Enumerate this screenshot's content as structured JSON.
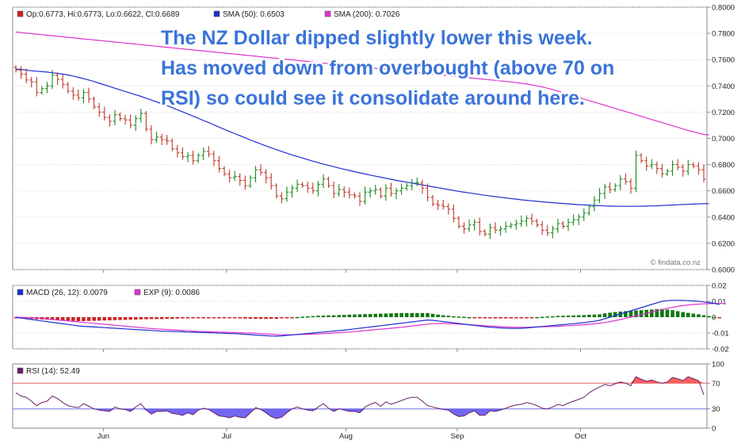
{
  "chart_data": {
    "type": "line",
    "annotation": [
      "The NZ Dollar dipped slightly lower this week.",
      "Has moved down from overbought (above 70 on",
      "RSI) so could see it consolidate around here."
    ],
    "watermark": "© findata.co.nz",
    "x_month_labels": [
      "Jun",
      "Jul",
      "Aug",
      "Sep",
      "Oct"
    ],
    "colors": {
      "up": "#1a8a1a",
      "down": "#c0392b",
      "sma50": "#1f2fd0",
      "sma200": "#dd33cc",
      "macd": "#1f2fd0",
      "exp": "#dd33cc",
      "rsi": "#6a1f6a",
      "rsi_over": "#ff4444",
      "rsi_under": "#5a4cf0",
      "hist_pos": "#117711",
      "hist_neg": "#cc2222"
    },
    "price": {
      "legend": [
        {
          "swatch": "#cc2222",
          "text": "Op:0.6773, Hi:0.6773, Lo:0.6622, Cl:0.6689"
        },
        {
          "swatch": "#1f2fd0",
          "text": "SMA (50): 0.6503"
        },
        {
          "swatch": "#dd33cc",
          "text": "SMA (200): 0.7026"
        }
      ],
      "ylim": [
        0.6,
        0.8
      ],
      "yticks": [
        "0.6000",
        "0.6200",
        "0.6400",
        "0.6600",
        "0.6800",
        "0.7000",
        "0.7200",
        "0.7400",
        "0.7600",
        "0.7800",
        "0.8000"
      ],
      "close": [
        0.752,
        0.749,
        0.7445,
        0.743,
        0.735,
        0.738,
        0.74,
        0.748,
        0.745,
        0.741,
        0.736,
        0.733,
        0.731,
        0.735,
        0.73,
        0.724,
        0.72,
        0.716,
        0.713,
        0.718,
        0.715,
        0.714,
        0.71,
        0.715,
        0.719,
        0.707,
        0.699,
        0.701,
        0.699,
        0.698,
        0.692,
        0.689,
        0.686,
        0.687,
        0.683,
        0.687,
        0.69,
        0.688,
        0.683,
        0.677,
        0.673,
        0.67,
        0.671,
        0.668,
        0.664,
        0.67,
        0.676,
        0.674,
        0.67,
        0.664,
        0.656,
        0.654,
        0.659,
        0.662,
        0.665,
        0.664,
        0.662,
        0.66,
        0.665,
        0.669,
        0.664,
        0.658,
        0.661,
        0.659,
        0.657,
        0.656,
        0.652,
        0.659,
        0.66,
        0.661,
        0.656,
        0.662,
        0.658,
        0.66,
        0.662,
        0.664,
        0.666,
        0.666,
        0.662,
        0.655,
        0.65,
        0.649,
        0.648,
        0.646,
        0.639,
        0.633,
        0.631,
        0.634,
        0.636,
        0.629,
        0.627,
        0.632,
        0.63,
        0.631,
        0.633,
        0.634,
        0.635,
        0.637,
        0.639,
        0.637,
        0.634,
        0.63,
        0.628,
        0.631,
        0.635,
        0.633,
        0.636,
        0.638,
        0.64,
        0.643,
        0.648,
        0.653,
        0.658,
        0.663,
        0.661,
        0.664,
        0.669,
        0.667,
        0.662,
        0.687,
        0.683,
        0.679,
        0.68,
        0.677,
        0.673,
        0.675,
        0.68,
        0.678,
        0.675,
        0.68,
        0.679,
        0.676,
        0.6689
      ],
      "sma50": [
        0.753,
        0.7525,
        0.752,
        0.7515,
        0.7512,
        0.7508,
        0.7505,
        0.75,
        0.7495,
        0.749,
        0.7483,
        0.7475,
        0.7465,
        0.7455,
        0.7445,
        0.7433,
        0.742,
        0.7408,
        0.7395,
        0.7382,
        0.737,
        0.7357,
        0.7345,
        0.7332,
        0.732,
        0.7306,
        0.7292,
        0.7278,
        0.7264,
        0.725,
        0.7234,
        0.7218,
        0.7202,
        0.7186,
        0.717,
        0.7153,
        0.7136,
        0.712,
        0.7103,
        0.7086,
        0.7069,
        0.7052,
        0.7036,
        0.702,
        0.7004,
        0.6988,
        0.6972,
        0.6957,
        0.6942,
        0.6928,
        0.6914,
        0.69,
        0.6887,
        0.6874,
        0.6862,
        0.685,
        0.6838,
        0.6826,
        0.6815,
        0.6804,
        0.6794,
        0.6784,
        0.6774,
        0.6764,
        0.6755,
        0.6746,
        0.6737,
        0.6728,
        0.672,
        0.6712,
        0.6704,
        0.6696,
        0.6688,
        0.668,
        0.6673,
        0.6666,
        0.6659,
        0.6652,
        0.6645,
        0.6638,
        0.6631,
        0.6624,
        0.6617,
        0.661,
        0.6603,
        0.6596,
        0.659,
        0.6584,
        0.6578,
        0.6572,
        0.6566,
        0.6561,
        0.6556,
        0.6551,
        0.6546,
        0.6541,
        0.6537,
        0.6532,
        0.6528,
        0.6524,
        0.652,
        0.6516,
        0.6513,
        0.651,
        0.6507,
        0.6504,
        0.6501,
        0.6498,
        0.6495,
        0.6493,
        0.6491,
        0.6489,
        0.6487,
        0.6485,
        0.6484,
        0.6483,
        0.6482,
        0.6482,
        0.6482,
        0.6482,
        0.6483,
        0.6484,
        0.6485,
        0.6486,
        0.6488,
        0.649,
        0.6492,
        0.6494,
        0.6496,
        0.6497,
        0.6499,
        0.65,
        0.6502,
        0.6503
      ],
      "sma200": [
        0.781,
        0.7806,
        0.7802,
        0.7798,
        0.7794,
        0.779,
        0.7786,
        0.7782,
        0.7778,
        0.7774,
        0.777,
        0.7766,
        0.7762,
        0.7758,
        0.7754,
        0.775,
        0.7746,
        0.7742,
        0.7738,
        0.7734,
        0.773,
        0.7726,
        0.7722,
        0.7718,
        0.7714,
        0.771,
        0.7706,
        0.7702,
        0.7698,
        0.7694,
        0.769,
        0.7686,
        0.7682,
        0.7678,
        0.7674,
        0.767,
        0.7666,
        0.7662,
        0.7658,
        0.7654,
        0.765,
        0.7646,
        0.7642,
        0.7638,
        0.7634,
        0.763,
        0.7626,
        0.7622,
        0.7618,
        0.7614,
        0.761,
        0.7606,
        0.7602,
        0.7598,
        0.7594,
        0.759,
        0.7586,
        0.7582,
        0.7578,
        0.7574,
        0.757,
        0.7566,
        0.7562,
        0.7558,
        0.7554,
        0.755,
        0.7546,
        0.7542,
        0.7538,
        0.7534,
        0.753,
        0.7526,
        0.7522,
        0.7518,
        0.7514,
        0.751,
        0.7506,
        0.7502,
        0.7498,
        0.7494,
        0.749,
        0.7486,
        0.7482,
        0.7478,
        0.7474,
        0.747,
        0.7466,
        0.7462,
        0.7458,
        0.7454,
        0.745,
        0.7446,
        0.7442,
        0.7438,
        0.7434,
        0.743,
        0.7425,
        0.742,
        0.7414,
        0.7408,
        0.74,
        0.7392,
        0.7382,
        0.7372,
        0.736,
        0.7348,
        0.7336,
        0.7324,
        0.7312,
        0.73,
        0.7288,
        0.7276,
        0.7264,
        0.7252,
        0.724,
        0.7228,
        0.7216,
        0.7204,
        0.7192,
        0.718,
        0.7168,
        0.7156,
        0.7144,
        0.7132,
        0.712,
        0.7108,
        0.7096,
        0.7084,
        0.7072,
        0.706,
        0.705,
        0.704,
        0.703,
        0.7026
      ]
    },
    "macd": {
      "legend": [
        {
          "swatch": "#1f2fd0",
          "text": "MACD (26, 12): 0.0079"
        },
        {
          "swatch": "#dd33cc",
          "text": "EXP (9): 0.0086"
        }
      ],
      "ylim": [
        -0.02,
        0.02
      ],
      "yticks": [
        "-0.02",
        "-0.01",
        "0",
        "0.01",
        "0.02"
      ],
      "macd": [
        -0.0002,
        -0.0006,
        -0.001,
        -0.0015,
        -0.0019,
        -0.0024,
        -0.0028,
        -0.0033,
        -0.0037,
        -0.0042,
        -0.0046,
        -0.0051,
        -0.0055,
        -0.0058,
        -0.006,
        -0.0062,
        -0.0064,
        -0.0066,
        -0.0068,
        -0.007,
        -0.0072,
        -0.0074,
        -0.0076,
        -0.0078,
        -0.008,
        -0.0082,
        -0.0084,
        -0.0086,
        -0.0088,
        -0.0089,
        -0.009,
        -0.0091,
        -0.0092,
        -0.0094,
        -0.0095,
        -0.0096,
        -0.0097,
        -0.0098,
        -0.0099,
        -0.0101,
        -0.0102,
        -0.0103,
        -0.0104,
        -0.0106,
        -0.0108,
        -0.011,
        -0.0113,
        -0.0115,
        -0.0117,
        -0.0119,
        -0.012,
        -0.0118,
        -0.0115,
        -0.0112,
        -0.0109,
        -0.0106,
        -0.0103,
        -0.01,
        -0.0097,
        -0.0094,
        -0.0091,
        -0.0088,
        -0.0085,
        -0.0082,
        -0.0078,
        -0.0074,
        -0.007,
        -0.0066,
        -0.0062,
        -0.0058,
        -0.0054,
        -0.005,
        -0.0046,
        -0.0042,
        -0.0038,
        -0.0034,
        -0.003,
        -0.0026,
        -0.0022,
        -0.0018,
        -0.002,
        -0.0024,
        -0.0028,
        -0.0032,
        -0.0036,
        -0.004,
        -0.0044,
        -0.0048,
        -0.0052,
        -0.0056,
        -0.006,
        -0.0063,
        -0.0066,
        -0.0068,
        -0.007,
        -0.0071,
        -0.0071,
        -0.007,
        -0.0068,
        -0.0065,
        -0.0062,
        -0.0059,
        -0.0056,
        -0.0053,
        -0.005,
        -0.0047,
        -0.0044,
        -0.0041,
        -0.0038,
        -0.0035,
        -0.003,
        -0.0026,
        -0.002,
        -0.001,
        0.0,
        0.001,
        0.002,
        0.003,
        0.004,
        0.005,
        0.006,
        0.007,
        0.008,
        0.009,
        0.01,
        0.0104,
        0.0106,
        0.0106,
        0.0105,
        0.0104,
        0.0102,
        0.01,
        0.0096,
        0.0092,
        0.0087,
        0.0079
      ],
      "exp": [
        0.0,
        -0.0001,
        -0.0002,
        -0.0004,
        -0.0006,
        -0.0009,
        -0.0012,
        -0.0015,
        -0.0018,
        -0.0021,
        -0.0024,
        -0.0027,
        -0.003,
        -0.0033,
        -0.0036,
        -0.0039,
        -0.0042,
        -0.0045,
        -0.0048,
        -0.0051,
        -0.0054,
        -0.0057,
        -0.006,
        -0.0063,
        -0.0066,
        -0.0069,
        -0.0072,
        -0.0074,
        -0.0076,
        -0.0078,
        -0.008,
        -0.0082,
        -0.0084,
        -0.0086,
        -0.0088,
        -0.009,
        -0.0091,
        -0.0092,
        -0.0093,
        -0.0094,
        -0.0095,
        -0.0096,
        -0.0097,
        -0.0098,
        -0.0099,
        -0.01,
        -0.0102,
        -0.0104,
        -0.0106,
        -0.0108,
        -0.011,
        -0.0111,
        -0.0111,
        -0.0111,
        -0.011,
        -0.0109,
        -0.0108,
        -0.0107,
        -0.0106,
        -0.0104,
        -0.0102,
        -0.01,
        -0.0098,
        -0.0096,
        -0.0094,
        -0.0091,
        -0.0088,
        -0.0085,
        -0.0082,
        -0.0079,
        -0.0076,
        -0.0073,
        -0.007,
        -0.0067,
        -0.0064,
        -0.006,
        -0.0056,
        -0.0052,
        -0.0048,
        -0.0044,
        -0.0041,
        -0.004,
        -0.004,
        -0.0041,
        -0.0042,
        -0.0044,
        -0.0046,
        -0.0048,
        -0.005,
        -0.0052,
        -0.0054,
        -0.0056,
        -0.0058,
        -0.006,
        -0.0062,
        -0.0063,
        -0.0064,
        -0.0064,
        -0.0064,
        -0.0063,
        -0.0062,
        -0.0061,
        -0.006,
        -0.0059,
        -0.0058,
        -0.0056,
        -0.0054,
        -0.0052,
        -0.005,
        -0.0048,
        -0.0045,
        -0.0042,
        -0.0038,
        -0.0034,
        -0.0028,
        -0.0022,
        -0.0015,
        -0.0008,
        0.0,
        0.0008,
        0.0016,
        0.0024,
        0.0032,
        0.004,
        0.0048,
        0.0056,
        0.0062,
        0.0068,
        0.0073,
        0.0077,
        0.008,
        0.0082,
        0.0084,
        0.0085,
        0.0086,
        0.0086,
        0.0086
      ],
      "hist_note": "histogram = macd - exp"
    },
    "rsi": {
      "legend": [
        {
          "swatch": "#6a1f6a",
          "text": "RSI (14): 52.49"
        }
      ],
      "ylim": [
        0,
        100
      ],
      "yticks": [
        "0",
        "30",
        "70",
        "100"
      ],
      "levels": [
        30,
        70
      ],
      "values": [
        55,
        50,
        48,
        42,
        35,
        40,
        42,
        50,
        46,
        40,
        35,
        33,
        32,
        38,
        34,
        30,
        28,
        27,
        26,
        33,
        30,
        29,
        26,
        33,
        38,
        28,
        22,
        26,
        26,
        27,
        23,
        22,
        20,
        24,
        21,
        28,
        31,
        29,
        24,
        19,
        18,
        16,
        19,
        17,
        16,
        24,
        32,
        29,
        24,
        18,
        15,
        17,
        24,
        30,
        33,
        30,
        28,
        27,
        33,
        38,
        31,
        26,
        30,
        28,
        26,
        26,
        24,
        33,
        37,
        40,
        34,
        41,
        37,
        40,
        43,
        46,
        48,
        48,
        42,
        35,
        33,
        31,
        29,
        28,
        22,
        18,
        19,
        24,
        27,
        20,
        20,
        27,
        26,
        28,
        31,
        34,
        36,
        37,
        40,
        38,
        35,
        31,
        30,
        33,
        37,
        35,
        39,
        42,
        45,
        48,
        55,
        60,
        64,
        68,
        66,
        69,
        72,
        70,
        66,
        80,
        76,
        73,
        75,
        72,
        70,
        72,
        79,
        77,
        74,
        80,
        77,
        74,
        52
      ]
    }
  }
}
